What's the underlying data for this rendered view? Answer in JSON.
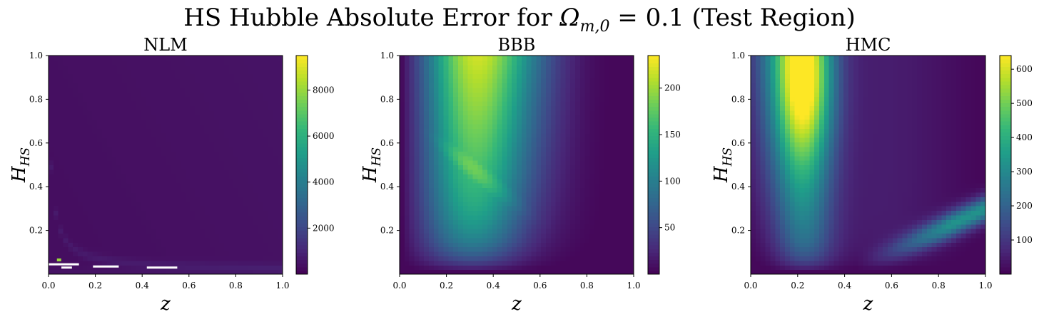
{
  "figure": {
    "title_prefix": "HS Hubble Absolute Error for ",
    "title_symbol": "Ω",
    "title_subscript": "m,0",
    "title_suffix": " = 0.1 (Test Region)"
  },
  "chart_data": [
    {
      "type": "heatmap",
      "title": "NLM",
      "xlabel": "z",
      "ylabel": "H",
      "ylabel_subscript": "HS",
      "xlim": [
        0.0,
        1.0
      ],
      "ylim": [
        0.0,
        1.0
      ],
      "xticks": [
        "0.0",
        "0.2",
        "0.4",
        "0.6",
        "0.8",
        "1.0"
      ],
      "yticks": [
        "0.2",
        "0.4",
        "0.6",
        "0.8",
        "1.0"
      ],
      "colormap": "viridis",
      "colorbar_range": [
        0,
        9500
      ],
      "colorbar_ticks": [
        "2000",
        "4000",
        "6000",
        "8000"
      ],
      "features": [
        {
          "kind": "background",
          "value": 400
        },
        {
          "kind": "curved_ridge",
          "shape": "H ~ 0.01/(z+0.01) + 0.02",
          "value": 600
        },
        {
          "kind": "hot_pixel",
          "z": 0.045,
          "H": 0.065,
          "value": 8000
        },
        {
          "kind": "missing_values",
          "segments": [
            [
              0.0,
              0.13,
              0.045
            ],
            [
              0.055,
              0.1,
              0.03
            ],
            [
              0.19,
              0.3,
              0.035
            ],
            [
              0.42,
              0.55,
              0.03
            ]
          ]
        }
      ]
    },
    {
      "type": "heatmap",
      "title": "BBB",
      "xlabel": "z",
      "ylabel": "H",
      "ylabel_subscript": "HS",
      "xlim": [
        0.0,
        1.0
      ],
      "ylim": [
        0.0,
        1.0
      ],
      "xticks": [
        "0.0",
        "0.2",
        "0.4",
        "0.6",
        "0.8",
        "1.0"
      ],
      "yticks": [
        "0.2",
        "0.4",
        "0.6",
        "0.8",
        "1.0"
      ],
      "colormap": "viridis",
      "colorbar_range": [
        0,
        235
      ],
      "colorbar_ticks": [
        "50",
        "100",
        "150",
        "200"
      ],
      "features": [
        {
          "kind": "vertical_band",
          "z_center": 0.32,
          "value_top": 190
        },
        {
          "kind": "elliptical_peak",
          "z": 0.3,
          "H": 0.5,
          "value": 230
        },
        {
          "kind": "low_region",
          "where": "H < 0.1 or z > 0.85",
          "value": 10
        }
      ]
    },
    {
      "type": "heatmap",
      "title": "HMC",
      "xlabel": "z",
      "ylabel": "H",
      "ylabel_subscript": "HS",
      "xlim": [
        0.0,
        1.0
      ],
      "ylim": [
        0.0,
        1.0
      ],
      "xticks": [
        "0.0",
        "0.2",
        "0.4",
        "0.6",
        "0.8",
        "1.0"
      ],
      "yticks": [
        "0.2",
        "0.4",
        "0.6",
        "0.8",
        "1.0"
      ],
      "colormap": "viridis",
      "colorbar_range": [
        0,
        640
      ],
      "colorbar_ticks": [
        "100",
        "200",
        "300",
        "400",
        "500",
        "600"
      ],
      "features": [
        {
          "kind": "vertical_band",
          "z_center": 0.23,
          "H_peak": 0.9,
          "value": 620
        },
        {
          "kind": "diagonal_band",
          "from": [
            0.5,
            0.05
          ],
          "to": [
            1.0,
            0.3
          ],
          "value": 330
        },
        {
          "kind": "low_region",
          "where": "upper right",
          "value": 20
        }
      ]
    }
  ]
}
